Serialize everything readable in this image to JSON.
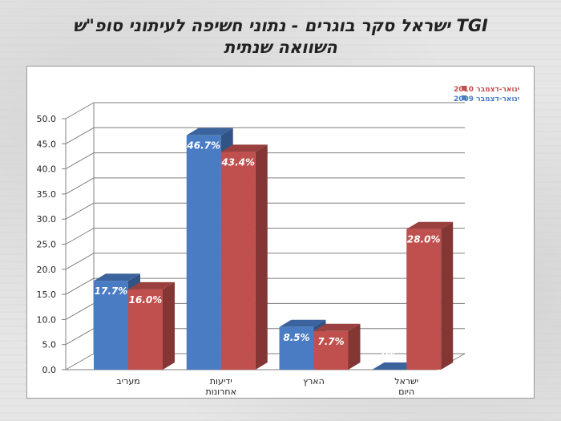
{
  "title": {
    "line1": "TGI ישראל סקר בוגרים - נתוני חשיפה לעיתוני סופ\"ש",
    "line2": "השוואה שנתית"
  },
  "chart_data": {
    "type": "bar",
    "categories": [
      [
        "מעריב"
      ],
      [
        "ידיעות",
        "אחרונות"
      ],
      [
        "הארץ"
      ],
      [
        "ישראל",
        "היום"
      ]
    ],
    "series": [
      {
        "name": "ינואר-דצמבר 2009",
        "color": "#4a7cc4",
        "values": [
          17.7,
          46.7,
          8.5,
          0
        ],
        "labels": [
          "17.7%",
          "46.7%",
          "8.5%",
          "0%"
        ]
      },
      {
        "name": "ינואר-דצמבר 2010",
        "color": "#c0504d",
        "values": [
          16.0,
          43.4,
          7.7,
          28.0
        ],
        "labels": [
          "16.0%",
          "43.4%",
          "7.7%",
          "28.0%"
        ]
      }
    ],
    "yticks": [
      "0.0",
      "5.0",
      "10.0",
      "15.0",
      "20.0",
      "25.0",
      "30.0",
      "35.0",
      "40.0",
      "45.0",
      "50.0"
    ],
    "ylim": [
      0,
      50
    ],
    "grid": true,
    "legend": "top-right",
    "legend_order": [
      1,
      0
    ]
  }
}
